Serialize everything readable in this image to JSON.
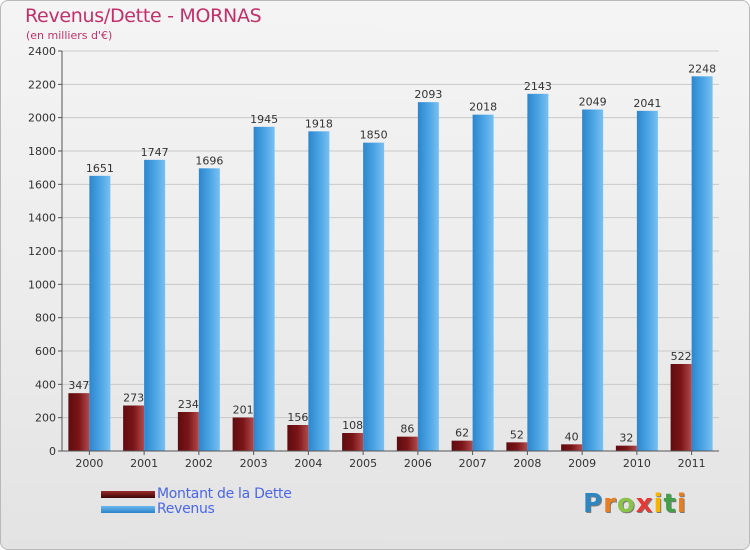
{
  "header": {
    "title": "Revenus/Dette - MORNAS",
    "subtitle": "(en milliers d'€)"
  },
  "colors": {
    "debt_bar": "#7a1518",
    "revenue_bar": "#4aa3e3",
    "title": "#c2306a",
    "legend_text": "#4a67e8"
  },
  "chart_data": {
    "type": "bar",
    "title": "Revenus/Dette - MORNAS",
    "subtitle": "(en milliers d'€)",
    "xlabel": "",
    "ylabel": "",
    "ylim": [
      0,
      2400
    ],
    "yticks": [
      0,
      200,
      400,
      600,
      800,
      1000,
      1200,
      1400,
      1600,
      1800,
      2000,
      2200,
      2400
    ],
    "grid": true,
    "legend_position": "bottom-left",
    "categories": [
      "2000",
      "2001",
      "2002",
      "2003",
      "2004",
      "2005",
      "2006",
      "2007",
      "2008",
      "2009",
      "2010",
      "2011"
    ],
    "series": [
      {
        "name": "Montant de la Dette",
        "values": [
          347,
          273,
          234,
          201,
          156,
          108,
          86,
          62,
          52,
          40,
          32,
          522
        ]
      },
      {
        "name": "Revenus",
        "values": [
          1651,
          1747,
          1696,
          1945,
          1918,
          1850,
          2093,
          2018,
          2143,
          2049,
          2041,
          2248
        ]
      }
    ]
  },
  "legend": {
    "items": [
      {
        "label": "Montant de la Dette"
      },
      {
        "label": "Revenus"
      }
    ]
  },
  "logo": {
    "letters": [
      "P",
      "r",
      "o",
      "x",
      "i",
      "t",
      "i"
    ],
    "letter_colors": [
      "#2e86c1",
      "#e67e22",
      "#8bc34a",
      "#e53935",
      "#f4b400",
      "#43a047",
      "#e67e22"
    ]
  }
}
